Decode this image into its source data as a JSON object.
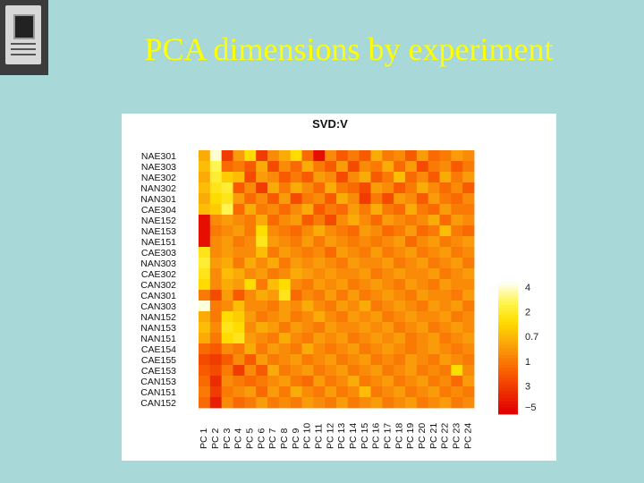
{
  "slide": {
    "title": "PCA dimensions by experiment"
  },
  "chart_data": {
    "type": "heatmap",
    "title": "SVD:V",
    "rows": [
      "NAE301",
      "NAE303",
      "NAE302",
      "NAN302",
      "NAN301",
      "CAE304",
      "NAE152",
      "NAE153",
      "NAE151",
      "CAE303",
      "NAN303",
      "CAE302",
      "CAN302",
      "CAN301",
      "CAN303",
      "NAN152",
      "NAN153",
      "NAN151",
      "CAE154",
      "CAE155",
      "CAE153",
      "CAN153",
      "CAN151",
      "CAN152"
    ],
    "columns": [
      "PC 1",
      "PC 2",
      "PC 3",
      "PC 4",
      "PC 5",
      "PC 6",
      "PC 7",
      "PC 8",
      "PC 9",
      "PC 10",
      "PC 11",
      "PC 12",
      "PC 13",
      "PC 14",
      "PC 15",
      "PC 16",
      "PC 17",
      "PC 18",
      "PC 19",
      "PC 20",
      "PC 21",
      "PC 22",
      "PC 23",
      "PC 24"
    ],
    "values": [
      [
        0.55,
        0.97,
        0.2,
        0.5,
        0.7,
        0.2,
        0.45,
        0.55,
        0.7,
        0.35,
        0.05,
        0.45,
        0.3,
        0.4,
        0.3,
        0.55,
        0.4,
        0.45,
        0.3,
        0.5,
        0.35,
        0.4,
        0.5,
        0.45
      ],
      [
        0.6,
        0.85,
        0.35,
        0.4,
        0.3,
        0.55,
        0.25,
        0.45,
        0.35,
        0.55,
        0.4,
        0.3,
        0.5,
        0.25,
        0.45,
        0.4,
        0.55,
        0.35,
        0.5,
        0.25,
        0.4,
        0.45,
        0.3,
        0.4
      ],
      [
        0.55,
        0.8,
        0.65,
        0.6,
        0.25,
        0.5,
        0.45,
        0.3,
        0.4,
        0.3,
        0.5,
        0.45,
        0.25,
        0.45,
        0.55,
        0.3,
        0.4,
        0.6,
        0.35,
        0.45,
        0.3,
        0.55,
        0.4,
        0.5
      ],
      [
        0.6,
        0.75,
        0.8,
        0.3,
        0.45,
        0.2,
        0.55,
        0.4,
        0.55,
        0.45,
        0.35,
        0.55,
        0.4,
        0.35,
        0.25,
        0.5,
        0.45,
        0.3,
        0.4,
        0.55,
        0.45,
        0.35,
        0.45,
        0.3
      ],
      [
        0.55,
        0.7,
        0.75,
        0.5,
        0.35,
        0.45,
        0.3,
        0.5,
        0.25,
        0.4,
        0.45,
        0.3,
        0.55,
        0.45,
        0.2,
        0.4,
        0.25,
        0.5,
        0.45,
        0.3,
        0.5,
        0.4,
        0.35,
        0.45
      ],
      [
        0.6,
        0.65,
        0.85,
        0.35,
        0.55,
        0.4,
        0.45,
        0.35,
        0.45,
        0.55,
        0.3,
        0.4,
        0.35,
        0.5,
        0.4,
        0.55,
        0.4,
        0.35,
        0.55,
        0.4,
        0.35,
        0.5,
        0.4,
        0.4
      ],
      [
        0.05,
        0.45,
        0.5,
        0.45,
        0.4,
        0.55,
        0.35,
        0.45,
        0.5,
        0.3,
        0.4,
        0.25,
        0.45,
        0.55,
        0.45,
        0.35,
        0.5,
        0.45,
        0.4,
        0.45,
        0.55,
        0.35,
        0.5,
        0.45
      ],
      [
        0.05,
        0.4,
        0.45,
        0.5,
        0.4,
        0.7,
        0.45,
        0.4,
        0.35,
        0.45,
        0.55,
        0.45,
        0.4,
        0.35,
        0.5,
        0.45,
        0.35,
        0.4,
        0.5,
        0.35,
        0.4,
        0.6,
        0.4,
        0.35
      ],
      [
        0.05,
        0.45,
        0.5,
        0.4,
        0.45,
        0.75,
        0.5,
        0.45,
        0.4,
        0.5,
        0.4,
        0.5,
        0.45,
        0.4,
        0.45,
        0.4,
        0.45,
        0.5,
        0.35,
        0.45,
        0.5,
        0.4,
        0.45,
        0.5
      ],
      [
        0.75,
        0.45,
        0.5,
        0.45,
        0.45,
        0.6,
        0.4,
        0.5,
        0.45,
        0.4,
        0.45,
        0.35,
        0.5,
        0.45,
        0.4,
        0.5,
        0.4,
        0.45,
        0.5,
        0.4,
        0.45,
        0.5,
        0.4,
        0.45
      ],
      [
        0.8,
        0.5,
        0.55,
        0.4,
        0.55,
        0.45,
        0.55,
        0.4,
        0.5,
        0.45,
        0.5,
        0.45,
        0.4,
        0.5,
        0.45,
        0.45,
        0.5,
        0.4,
        0.45,
        0.5,
        0.4,
        0.45,
        0.5,
        0.4
      ],
      [
        0.75,
        0.45,
        0.6,
        0.55,
        0.45,
        0.5,
        0.4,
        0.45,
        0.55,
        0.5,
        0.45,
        0.5,
        0.45,
        0.45,
        0.5,
        0.4,
        0.45,
        0.5,
        0.45,
        0.45,
        0.5,
        0.4,
        0.45,
        0.5
      ],
      [
        0.7,
        0.45,
        0.55,
        0.5,
        0.7,
        0.4,
        0.6,
        0.7,
        0.45,
        0.4,
        0.5,
        0.45,
        0.5,
        0.4,
        0.45,
        0.5,
        0.45,
        0.4,
        0.5,
        0.45,
        0.4,
        0.5,
        0.45,
        0.45
      ],
      [
        0.4,
        0.25,
        0.5,
        0.3,
        0.45,
        0.55,
        0.5,
        0.75,
        0.35,
        0.45,
        0.4,
        0.5,
        0.4,
        0.5,
        0.4,
        0.45,
        0.5,
        0.45,
        0.4,
        0.5,
        0.45,
        0.45,
        0.4,
        0.5
      ],
      [
        0.98,
        0.4,
        0.45,
        0.6,
        0.45,
        0.45,
        0.4,
        0.5,
        0.45,
        0.55,
        0.45,
        0.4,
        0.5,
        0.45,
        0.55,
        0.4,
        0.45,
        0.5,
        0.45,
        0.4,
        0.5,
        0.45,
        0.5,
        0.4
      ],
      [
        0.55,
        0.4,
        0.7,
        0.65,
        0.5,
        0.4,
        0.45,
        0.5,
        0.4,
        0.45,
        0.55,
        0.45,
        0.4,
        0.5,
        0.45,
        0.5,
        0.4,
        0.45,
        0.5,
        0.45,
        0.45,
        0.5,
        0.4,
        0.45
      ],
      [
        0.6,
        0.45,
        0.75,
        0.7,
        0.45,
        0.55,
        0.5,
        0.4,
        0.5,
        0.45,
        0.4,
        0.5,
        0.45,
        0.45,
        0.5,
        0.45,
        0.5,
        0.4,
        0.45,
        0.5,
        0.4,
        0.45,
        0.5,
        0.45
      ],
      [
        0.55,
        0.4,
        0.7,
        0.75,
        0.5,
        0.45,
        0.4,
        0.55,
        0.45,
        0.4,
        0.5,
        0.45,
        0.5,
        0.4,
        0.45,
        0.5,
        0.45,
        0.5,
        0.4,
        0.45,
        0.5,
        0.4,
        0.45,
        0.5
      ],
      [
        0.35,
        0.3,
        0.45,
        0.4,
        0.55,
        0.4,
        0.5,
        0.45,
        0.4,
        0.55,
        0.45,
        0.4,
        0.45,
        0.5,
        0.4,
        0.45,
        0.5,
        0.45,
        0.4,
        0.45,
        0.5,
        0.45,
        0.4,
        0.45
      ],
      [
        0.25,
        0.2,
        0.3,
        0.45,
        0.3,
        0.5,
        0.4,
        0.45,
        0.5,
        0.4,
        0.45,
        0.5,
        0.4,
        0.45,
        0.5,
        0.4,
        0.45,
        0.4,
        0.5,
        0.45,
        0.4,
        0.5,
        0.45,
        0.4
      ],
      [
        0.3,
        0.25,
        0.4,
        0.2,
        0.45,
        0.3,
        0.55,
        0.4,
        0.45,
        0.5,
        0.4,
        0.45,
        0.5,
        0.4,
        0.45,
        0.5,
        0.4,
        0.45,
        0.5,
        0.4,
        0.45,
        0.4,
        0.7,
        0.45
      ],
      [
        0.35,
        0.15,
        0.45,
        0.4,
        0.35,
        0.4,
        0.45,
        0.5,
        0.4,
        0.35,
        0.5,
        0.4,
        0.45,
        0.55,
        0.4,
        0.45,
        0.5,
        0.4,
        0.45,
        0.5,
        0.4,
        0.45,
        0.35,
        0.5
      ],
      [
        0.4,
        0.2,
        0.4,
        0.45,
        0.5,
        0.35,
        0.5,
        0.4,
        0.55,
        0.45,
        0.4,
        0.5,
        0.4,
        0.45,
        0.6,
        0.4,
        0.45,
        0.5,
        0.4,
        0.45,
        0.5,
        0.4,
        0.45,
        0.4
      ],
      [
        0.35,
        0.1,
        0.45,
        0.35,
        0.4,
        0.5,
        0.4,
        0.45,
        0.4,
        0.5,
        0.45,
        0.4,
        0.5,
        0.4,
        0.45,
        0.5,
        0.4,
        0.45,
        0.5,
        0.4,
        0.45,
        0.5,
        0.4,
        0.45
      ]
    ],
    "legend": {
      "labels": [
        "4",
        "2",
        "0.7",
        "1",
        "3",
        "−5"
      ]
    }
  },
  "colors": {
    "slide_bg": "#a8d8d8",
    "title": "#ffff00"
  }
}
